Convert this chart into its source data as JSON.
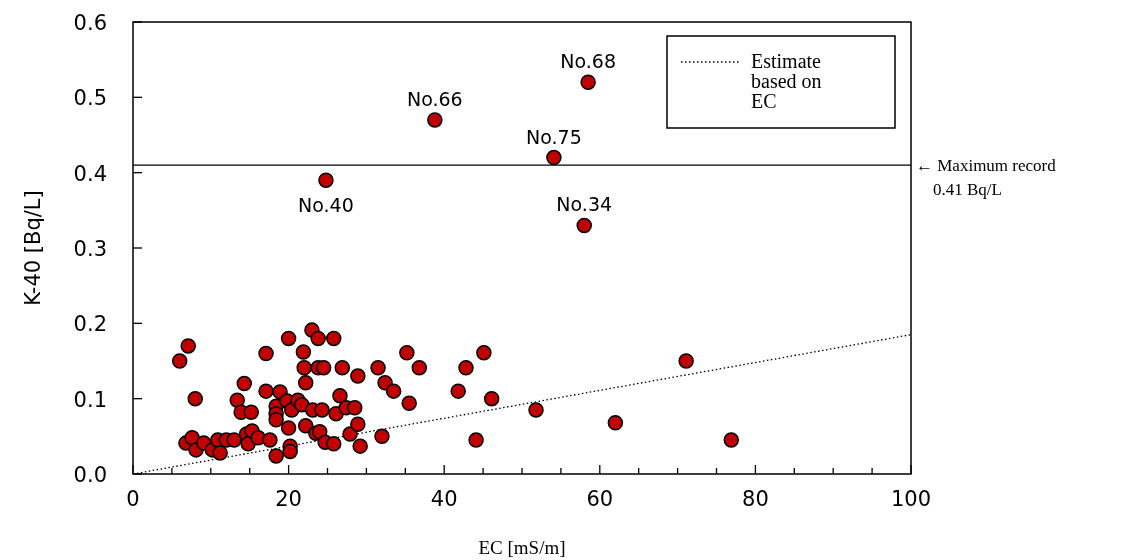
{
  "chart_data": {
    "type": "scatter",
    "xlabel": "EC [mS/m]",
    "ylabel": "K-40 [Bq/L]",
    "xlim": [
      0,
      100
    ],
    "ylim": [
      0,
      0.6
    ],
    "xticks": [
      0,
      {
        "value": 5,
        "label": null
      },
      {
        "value": 10,
        "label": null
      },
      {
        "value": 15,
        "label": null
      },
      20,
      {
        "value": 25,
        "label": null
      },
      {
        "value": 30,
        "label": null
      },
      {
        "value": 35,
        "label": null
      },
      40,
      {
        "value": 45,
        "label": null
      },
      {
        "value": 50,
        "label": null
      },
      {
        "value": 55,
        "label": null
      },
      60,
      {
        "value": 65,
        "label": null
      },
      {
        "value": 70,
        "label": null
      },
      {
        "value": 75,
        "label": null
      },
      80,
      {
        "value": 85,
        "label": null
      },
      {
        "value": 90,
        "label": null
      },
      {
        "value": 95,
        "label": null
      },
      100
    ],
    "yticks": [
      {
        "value": 0,
        "label": "0.0"
      },
      {
        "value": 0.1,
        "label": "0.1"
      },
      {
        "value": 0.2,
        "label": "0.2"
      },
      {
        "value": 0.3,
        "label": "0.3"
      },
      {
        "value": 0.4,
        "label": "0.4"
      },
      {
        "value": 0.5,
        "label": "0.5"
      },
      {
        "value": 0.6,
        "label": "0.6"
      }
    ],
    "grid": false,
    "legend": "top right",
    "marker": "circle",
    "series": [
      {
        "color": "#c00000",
        "x": [
          6.0,
          7.1,
          6.8,
          7.6,
          8.0,
          8.1,
          9.1,
          10.2,
          10.9,
          11.2,
          12,
          13,
          13.4,
          13.9,
          14.3,
          14.6,
          14.8,
          15.2,
          15.3,
          16.1,
          17.1,
          17.1,
          17.6,
          18.4,
          18.4,
          18.4,
          18.4,
          18.9,
          19.8,
          20,
          20,
          20.2,
          20.2,
          20.4,
          21.2,
          21.7,
          21.9,
          22,
          22.2,
          22.2,
          23,
          23.1,
          23.5,
          23.8,
          23.8,
          24,
          24.3,
          24.5,
          24.7,
          24.8,
          25.8,
          25.8,
          26.1,
          26.6,
          26.9,
          27.4,
          27.9,
          28.5,
          28.9,
          28.9,
          29.2,
          31.5,
          32,
          32.4,
          33.5,
          35.2,
          35.5,
          36.8,
          38.8,
          41.8,
          42.8,
          44.1,
          45.1,
          46.1,
          51.8,
          54.1,
          58,
          58.5,
          62,
          71.1,
          76.9
        ],
        "values": [
          0.15,
          0.17,
          0.041,
          0.048,
          0.1,
          0.032,
          0.041,
          0.032,
          0.045,
          0.028,
          0.045,
          0.045,
          0.098,
          0.082,
          0.12,
          0.053,
          0.04,
          0.082,
          0.057,
          0.048,
          0.16,
          0.11,
          0.045,
          0.09,
          0.08,
          0.072,
          0.024,
          0.109,
          0.097,
          0.18,
          0.061,
          0.037,
          0.03,
          0.085,
          0.098,
          0.092,
          0.162,
          0.141,
          0.121,
          0.064,
          0.191,
          0.085,
          0.054,
          0.18,
          0.141,
          0.056,
          0.085,
          0.141,
          0.042,
          0.39,
          0.18,
          0.04,
          0.08,
          0.104,
          0.141,
          0.088,
          0.053,
          0.088,
          0.066,
          0.13,
          0.037,
          0.141,
          0.05,
          0.121,
          0.11,
          0.161,
          0.094,
          0.141,
          0.47,
          0.11,
          0.141,
          0.045,
          0.161,
          0.1,
          0.085,
          0.42,
          0.33,
          0.52,
          0.068,
          0.15,
          0.045
        ]
      },
      {
        "type": "line",
        "name": "Estimate based on EC",
        "color": "#000000",
        "line_style": "dotted",
        "marker": "none",
        "x": [
          0,
          100
        ],
        "values": [
          0,
          0.185
        ]
      }
    ],
    "ref_lines": [
      {
        "axis": "y",
        "value": 0.41,
        "label": "← Maximum record 0.41 Bq/L",
        "color": "#000000",
        "line_style": "solid"
      }
    ],
    "annotations": [
      {
        "text": "No.68",
        "x": 58.5,
        "y": 0.52
      },
      {
        "text": "No.66",
        "x": 38.8,
        "y": 0.47
      },
      {
        "text": "No.75",
        "x": 54.1,
        "y": 0.42
      },
      {
        "text": "No.40",
        "x": 24.8,
        "y": 0.39
      },
      {
        "text": "No.34",
        "x": 58,
        "y": 0.33
      }
    ]
  }
}
